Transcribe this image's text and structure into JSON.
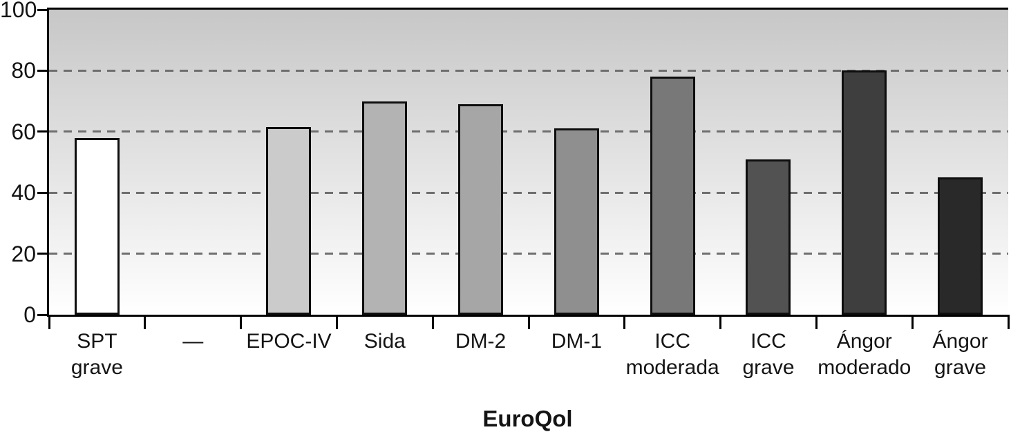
{
  "chart_data": {
    "type": "bar",
    "title": "",
    "xlabel": "EuroQol",
    "ylabel": "",
    "ylim": [
      0,
      100
    ],
    "yticks": [
      0,
      20,
      40,
      60,
      80,
      100
    ],
    "gridlines": [
      20,
      40,
      60,
      80
    ],
    "gridline_style": "dashed",
    "legend": "none",
    "categories": [
      "SPT\ngrave",
      "—",
      "EPOC-IV",
      "Sida",
      "DM-2",
      "DM-1",
      "ICC\nmoderada",
      "ICC\ngrave",
      "Ángor\nmoderado",
      "Ángor\ngrave"
    ],
    "values": [
      58,
      null,
      61.5,
      70,
      69,
      61,
      78,
      51,
      80,
      45
    ],
    "bar_colors": [
      "#ffffff",
      null,
      "#cbcbcb",
      "#b3b3b3",
      "#a6a6a6",
      "#8f8f8f",
      "#787878",
      "#525252",
      "#3e3e3e",
      "#292929"
    ],
    "bar_border_color": "#0e0e0e",
    "axis_color": "#000000",
    "text_color": "#141414",
    "gridline_color": "#6e6e6e",
    "plot_background_top": "#c7c7c7",
    "plot_background_bottom": "#ffffff"
  }
}
